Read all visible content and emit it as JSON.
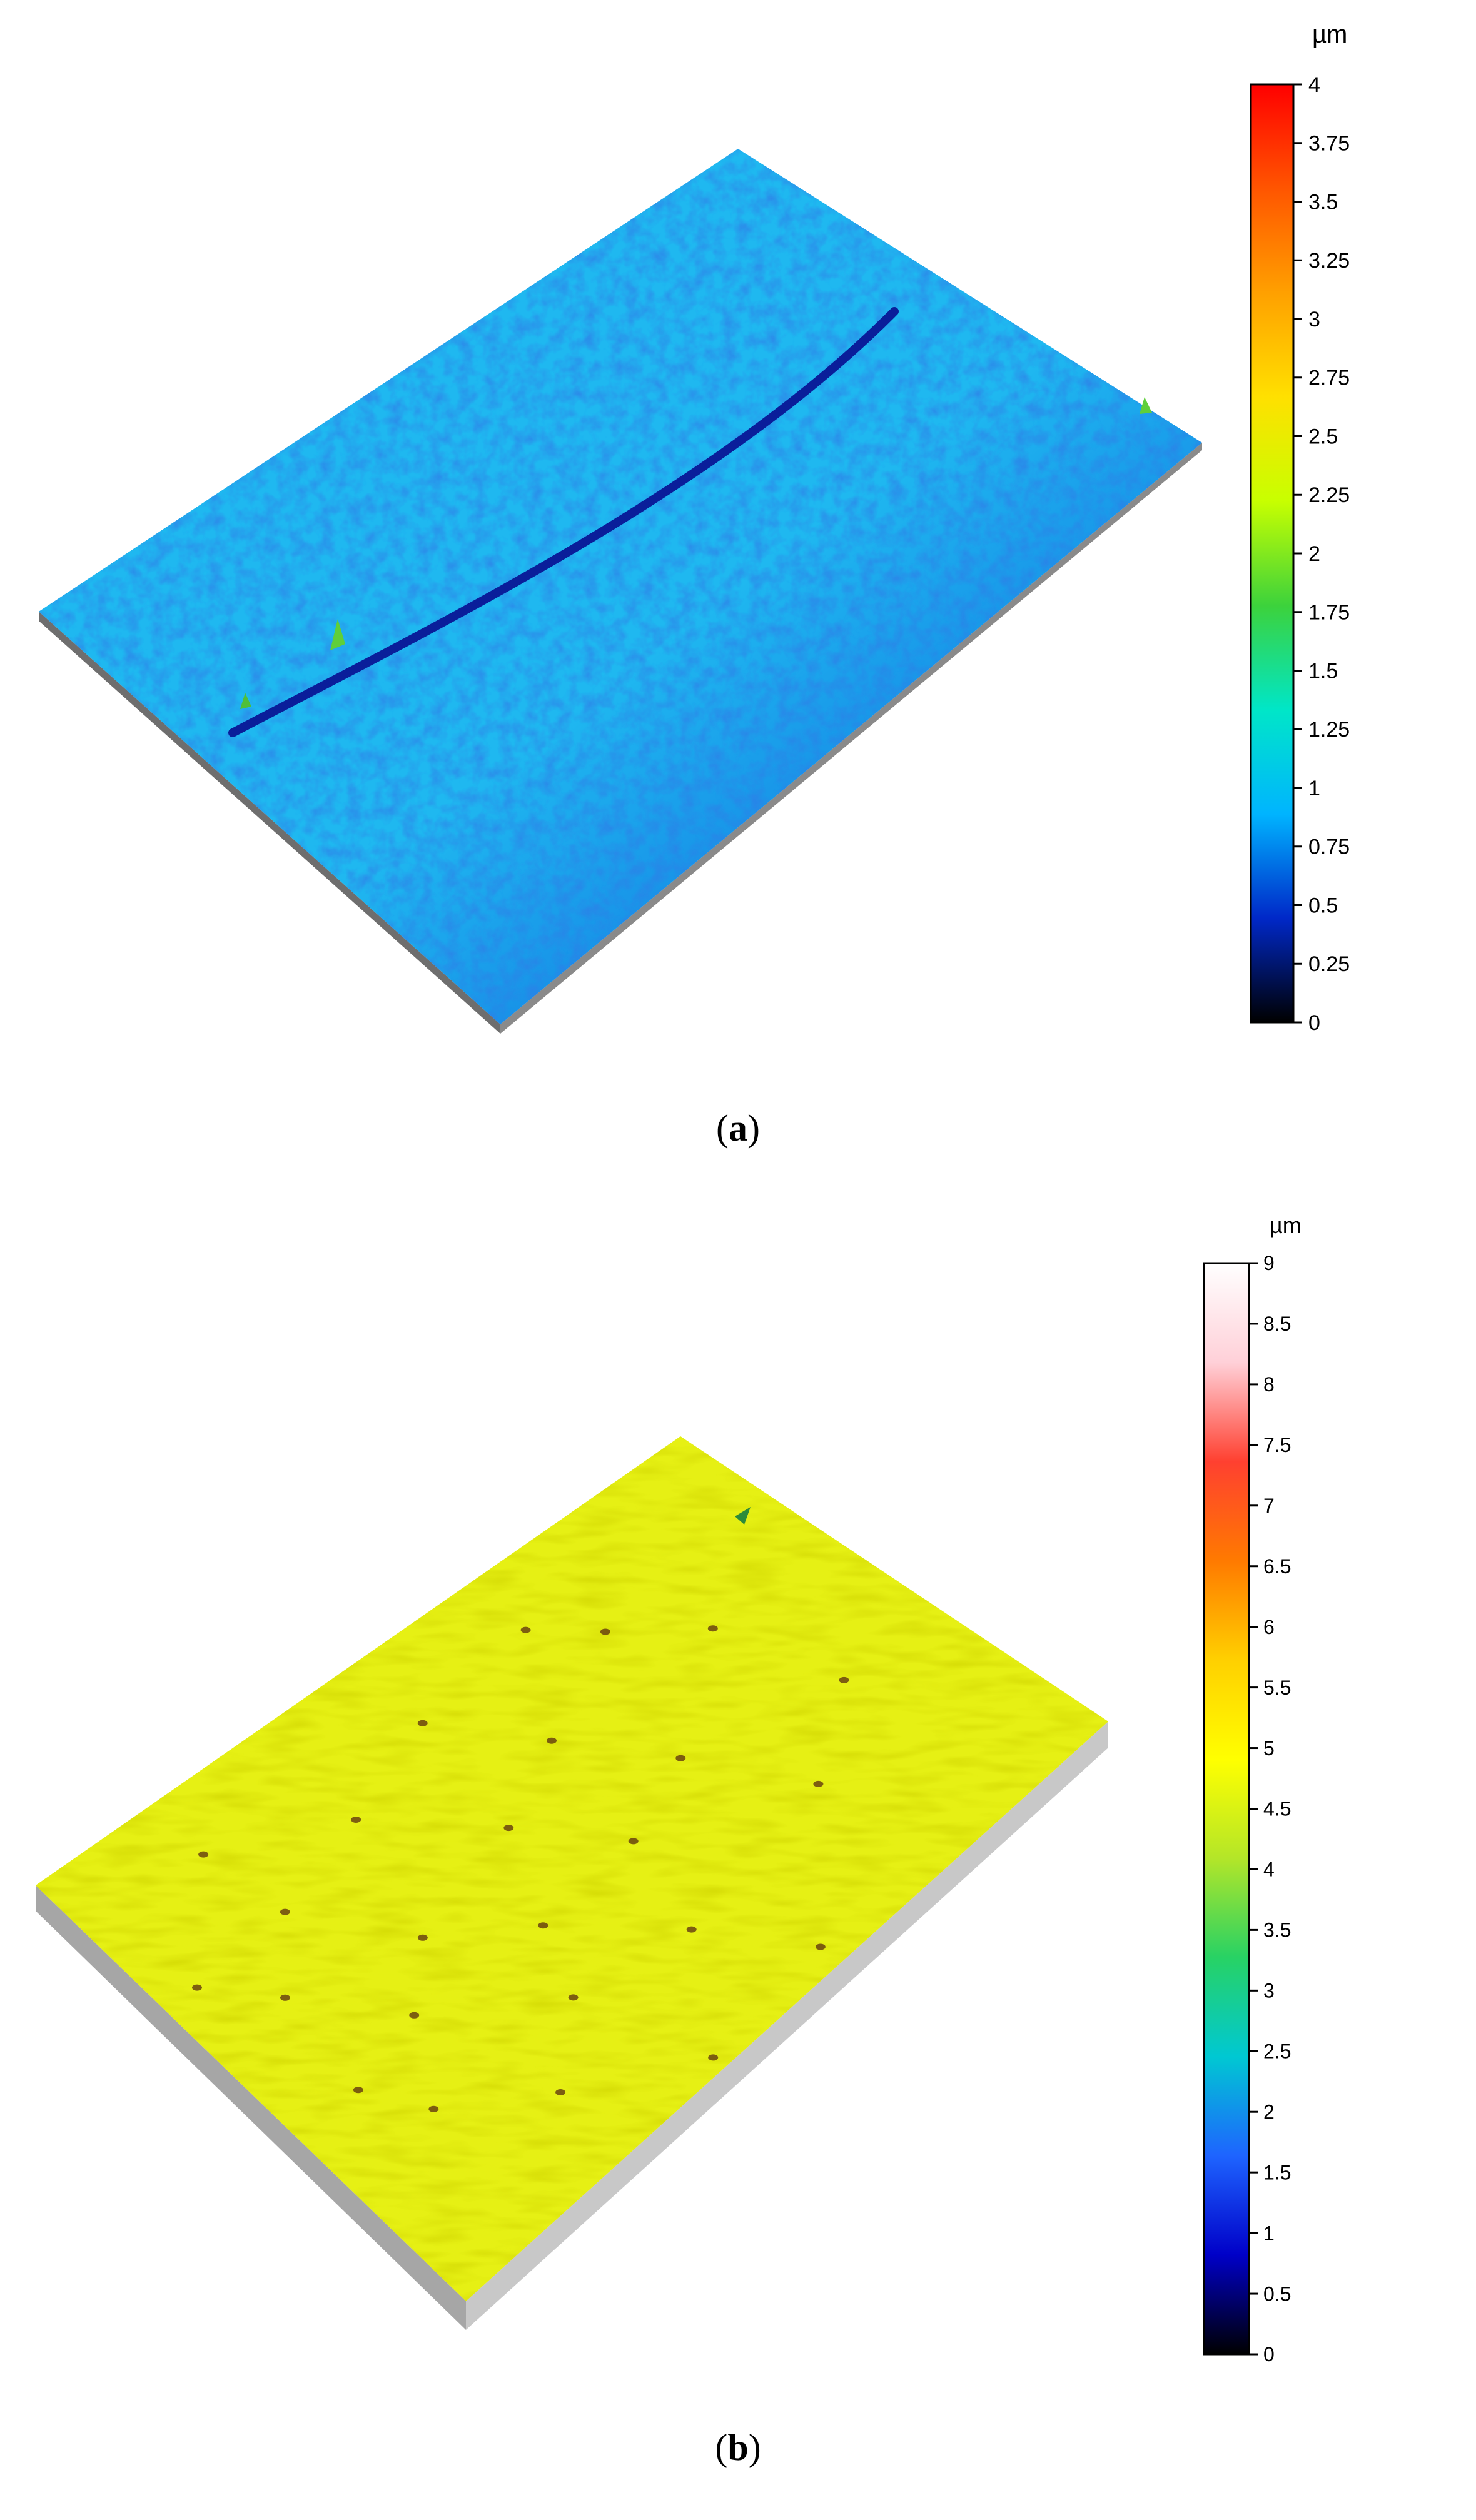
{
  "panels": [
    {
      "id": "a",
      "caption_open": "(",
      "caption_letter": "a",
      "caption_close": ")",
      "unit": "µm",
      "scale_ticks": [
        "4",
        "3.75",
        "3.5",
        "3.25",
        "3",
        "2.75",
        "2.5",
        "2.25",
        "2",
        "1.75",
        "1.5",
        "1.25",
        "1",
        "0.75",
        "0.5",
        "0.25",
        "0"
      ],
      "scale_colors": [
        "#ff0000",
        "#ff5500",
        "#ffa000",
        "#ffe000",
        "#c8ff00",
        "#3cd23c",
        "#00e6c8",
        "#00b4ff",
        "#0028c8",
        "#000000"
      ],
      "surface_color": "#1fb8f0",
      "surface_shade": "#0a4ad8",
      "groove_color": "#0a1e9a"
    },
    {
      "id": "b",
      "caption_open": "(",
      "caption_letter": "b",
      "caption_close": ")",
      "unit": "µm",
      "scale_ticks": [
        "9",
        "8.5",
        "8",
        "7.5",
        "7",
        "6.5",
        "6",
        "5.5",
        "5",
        "4.5",
        "4",
        "3.5",
        "3",
        "2.5",
        "2",
        "1.5",
        "1",
        "0.5",
        "0"
      ],
      "scale_colors": [
        "#ffffff",
        "#ffd0d8",
        "#ff4030",
        "#ff7a00",
        "#ffd000",
        "#ffff00",
        "#b4e628",
        "#28d264",
        "#00c8d2",
        "#1e64ff",
        "#0000c8",
        "#000000"
      ],
      "surface_color": "#e6f014",
      "surface_shade": "#b9c000",
      "pit_color": "#5a2d10",
      "side_color": "#a8a8a8"
    }
  ]
}
